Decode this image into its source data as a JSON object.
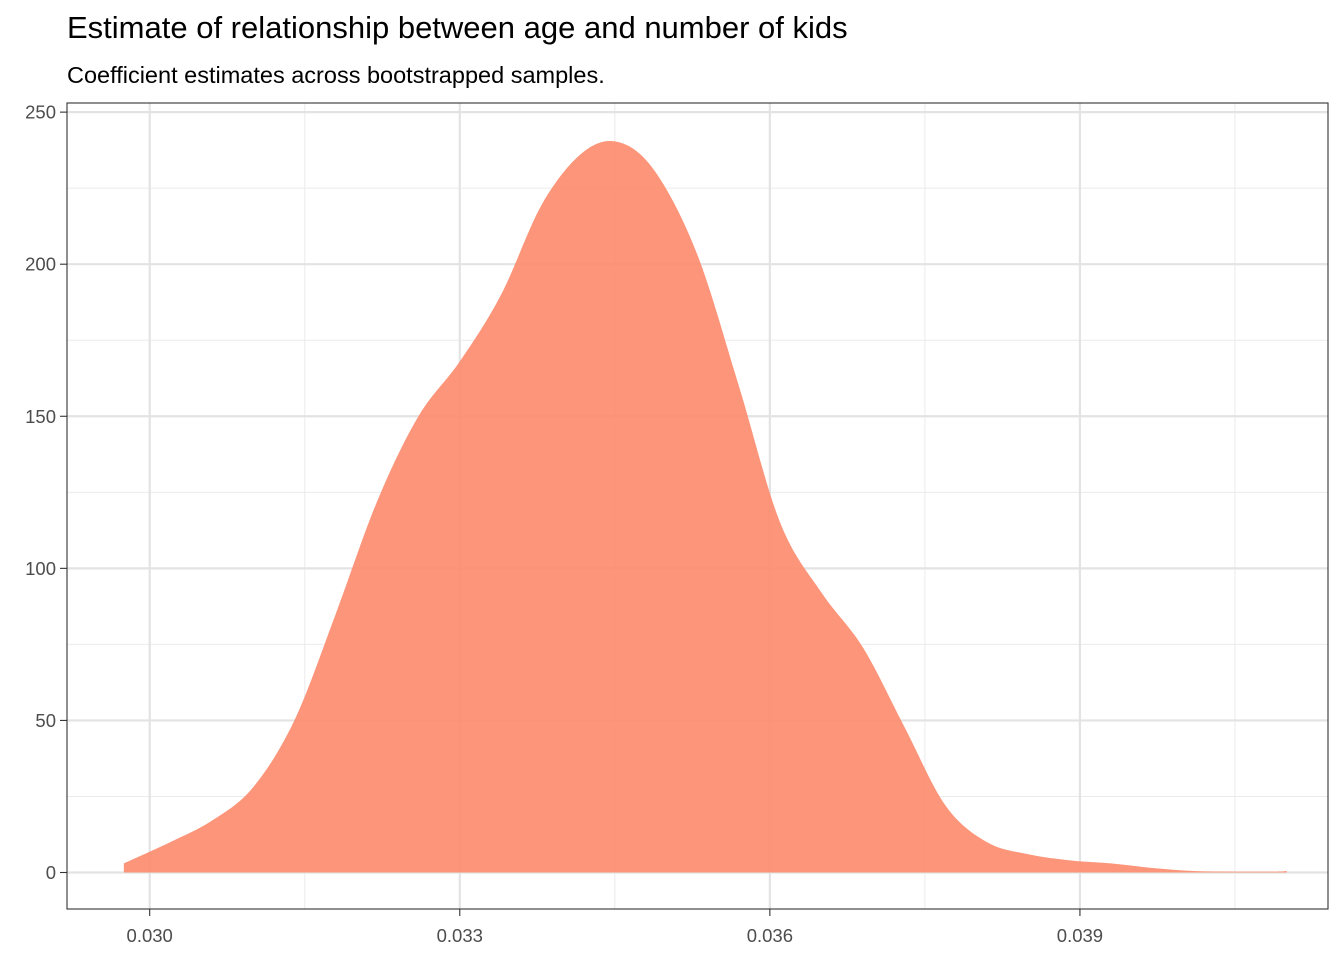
{
  "chart_data": {
    "type": "area",
    "title": "Estimate of relationship between age and number of kids",
    "subtitle": "Coefficient estimates across bootstrapped samples.",
    "xlabel": "",
    "ylabel": "",
    "xlim": [
      0.0292,
      0.0414
    ],
    "ylim": [
      -12,
      253
    ],
    "x_ticks": [
      0.03,
      0.033,
      0.036,
      0.039
    ],
    "x_tick_labels": [
      "0.030",
      "0.033",
      "0.036",
      "0.039"
    ],
    "y_ticks": [
      0,
      50,
      100,
      150,
      200,
      250
    ],
    "y_tick_labels": [
      "0",
      "50",
      "100",
      "150",
      "200",
      "250"
    ],
    "grid": true,
    "fill_color": "#FC8D6F",
    "fill_opacity": 0.93,
    "series": [
      {
        "x": [
          0.02975,
          0.0302,
          0.0306,
          0.031,
          0.0314,
          0.0318,
          0.0322,
          0.0326,
          0.033,
          0.0334,
          0.0338,
          0.0342,
          0.03455,
          0.0349,
          0.0353,
          0.0357,
          0.0361,
          0.0365,
          0.0369,
          0.0373,
          0.0377,
          0.0381,
          0.0385,
          0.0389,
          0.0393,
          0.0397,
          0.0401,
          0.0405,
          0.0409,
          0.041
        ],
        "y": [
          3,
          10,
          17,
          28,
          50,
          85,
          122,
          150,
          168,
          190,
          220,
          237,
          240,
          230,
          203,
          160,
          115,
          92,
          74,
          48,
          22,
          10,
          6,
          4,
          3,
          1.5,
          0.5,
          0.3,
          0.3,
          0.5
        ]
      }
    ]
  }
}
